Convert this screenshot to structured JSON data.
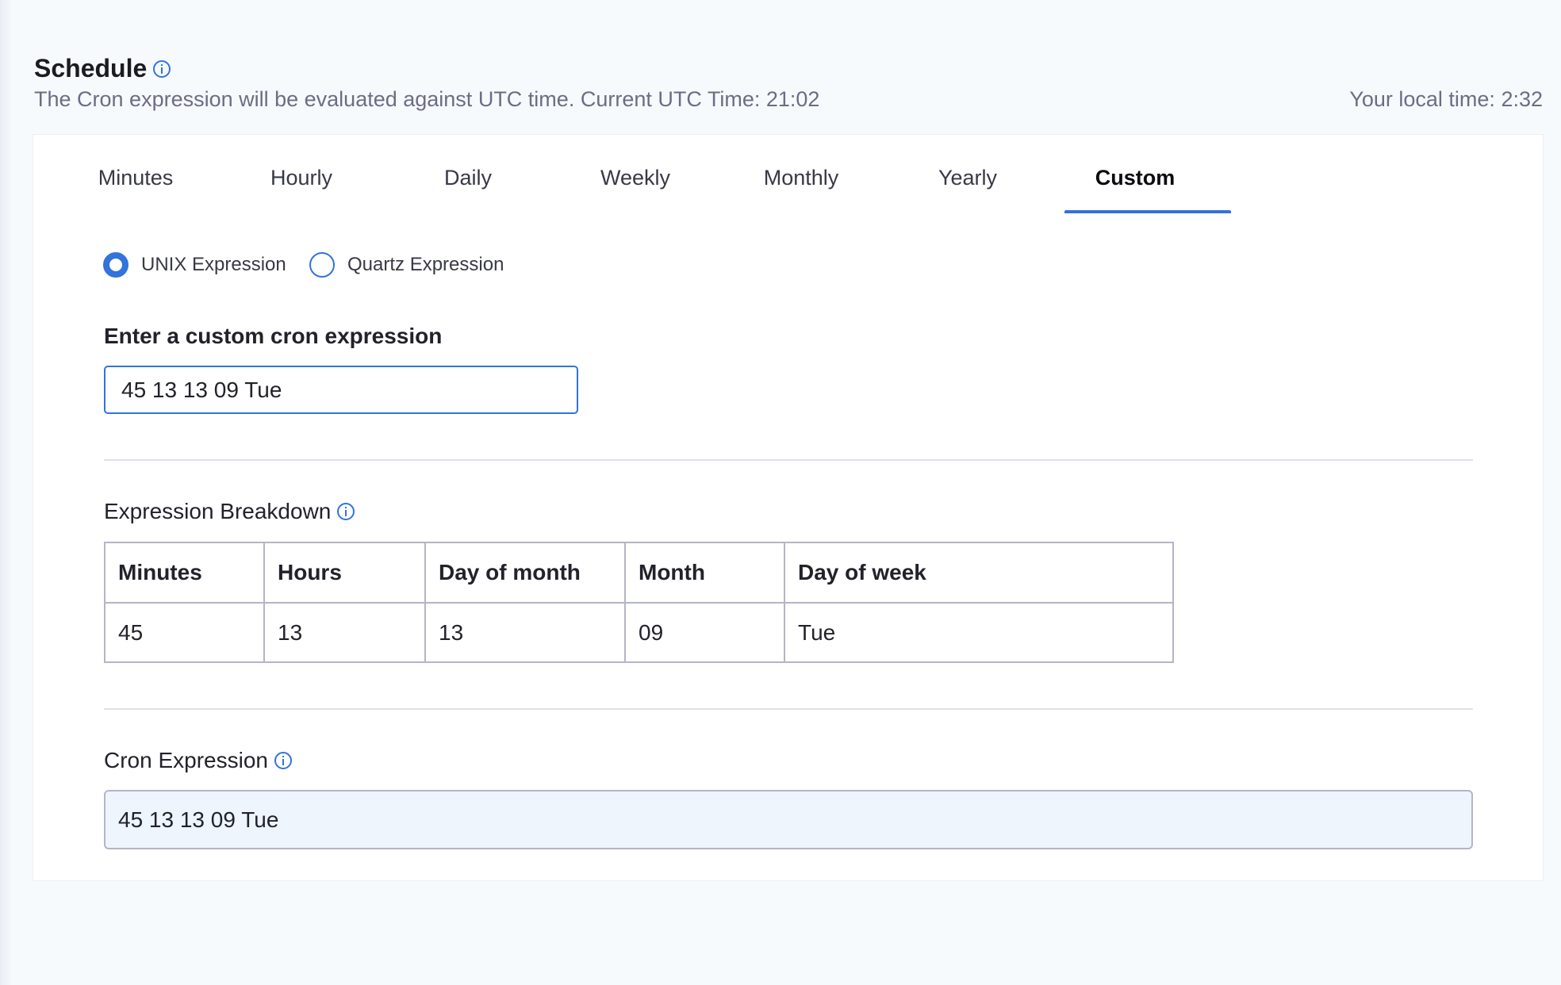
{
  "header": {
    "title": "Schedule",
    "subtitle": "The Cron expression will be evaluated against UTC time. Current UTC Time: 21:02",
    "local_time": "Your local time: 2:32"
  },
  "tabs": [
    {
      "label": "Minutes"
    },
    {
      "label": "Hourly"
    },
    {
      "label": "Daily"
    },
    {
      "label": "Weekly"
    },
    {
      "label": "Monthly"
    },
    {
      "label": "Yearly"
    },
    {
      "label": "Custom",
      "active": true
    }
  ],
  "expression_type": {
    "options": [
      {
        "label": "UNIX Expression",
        "selected": true
      },
      {
        "label": "Quartz Expression",
        "selected": false
      }
    ]
  },
  "custom_input": {
    "label": "Enter a custom cron expression",
    "value": "45 13 13 09 Tue"
  },
  "breakdown": {
    "title": "Expression Breakdown",
    "headers": [
      "Minutes",
      "Hours",
      "Day of month",
      "Month",
      "Day of week"
    ],
    "values": [
      "45",
      "13",
      "13",
      "09",
      "Tue"
    ]
  },
  "cron_expression": {
    "label": "Cron Expression",
    "value": "45 13 13 09 Tue"
  },
  "colors": {
    "accent": "#3273dc",
    "background": "#f7fafd",
    "readonly_bg": "#eef5fd"
  }
}
